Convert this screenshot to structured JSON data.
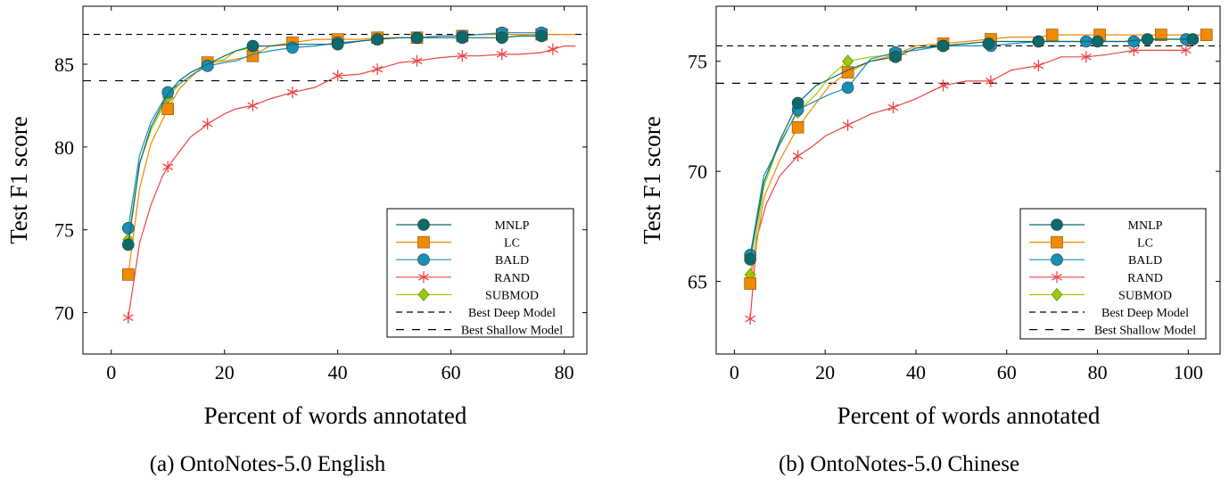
{
  "chart_data": [
    {
      "type": "line",
      "caption": "(a) OntoNotes-5.0 English",
      "xlabel": "Percent of words annotated",
      "ylabel": "Test F1 score",
      "xlim": [
        -5,
        84
      ],
      "ylim": [
        67.5,
        88.5
      ],
      "xticks": [
        0,
        20,
        40,
        60,
        80
      ],
      "yticks": [
        70,
        75,
        80,
        85
      ],
      "legend_position": "bottom-right",
      "series": [
        {
          "name": "MNLP",
          "color": "#0b6b6b",
          "marker": "circle",
          "x": [
            3,
            5,
            7,
            10,
            12,
            14,
            17,
            20,
            22,
            25,
            28,
            32,
            36,
            40,
            44,
            47,
            51,
            54,
            58,
            62,
            65,
            69,
            72,
            76
          ],
          "y": [
            74.1,
            79,
            81.2,
            83.2,
            84,
            84.5,
            85,
            85.5,
            85.8,
            86.1,
            86.1,
            86.2,
            86.2,
            86.2,
            86.4,
            86.5,
            86.6,
            86.6,
            86.6,
            86.6,
            86.6,
            86.6,
            86.7,
            86.7
          ],
          "markers": [
            [
              3,
              74.1
            ],
            [
              25,
              86.1
            ],
            [
              40,
              86.2
            ],
            [
              47,
              86.5
            ],
            [
              54,
              86.6
            ],
            [
              62,
              86.6
            ],
            [
              69,
              86.6
            ],
            [
              76,
              86.7
            ]
          ]
        },
        {
          "name": "LC",
          "color": "#f08a00",
          "marker": "square",
          "x": [
            3,
            5,
            7,
            10,
            12,
            14,
            17,
            20,
            22,
            25,
            28,
            32,
            36,
            40,
            44,
            47,
            51,
            54,
            58,
            62,
            65,
            69,
            72,
            76,
            80,
            82
          ],
          "y": [
            72.3,
            77.5,
            80.2,
            82.3,
            83.5,
            84.2,
            85.1,
            85.2,
            85.3,
            85.5,
            86.1,
            86.3,
            86.5,
            86.5,
            86.5,
            86.6,
            86.6,
            86.6,
            86.7,
            86.7,
            86.8,
            86.8,
            86.8,
            86.8,
            86.8,
            86.8
          ],
          "markers": [
            [
              3,
              72.3
            ],
            [
              10,
              82.3
            ],
            [
              17,
              85.1
            ],
            [
              25,
              85.5
            ],
            [
              32,
              86.3
            ],
            [
              40,
              86.5
            ],
            [
              47,
              86.6
            ],
            [
              54,
              86.6
            ],
            [
              62,
              86.7
            ],
            [
              69,
              86.8
            ],
            [
              76,
              86.8
            ]
          ]
        },
        {
          "name": "BALD",
          "color": "#1a8fb5",
          "marker": "circle",
          "x": [
            3,
            5,
            7,
            10,
            12,
            14,
            17,
            20,
            22,
            25,
            28,
            32,
            36,
            40,
            44,
            47,
            51,
            54,
            58,
            62,
            65,
            69,
            72,
            76
          ],
          "y": [
            75.1,
            79.5,
            81.5,
            83.3,
            83.8,
            84.3,
            84.9,
            85.1,
            85.2,
            85.6,
            85.8,
            86,
            86.1,
            86.3,
            86.4,
            86.5,
            86.6,
            86.6,
            86.7,
            86.7,
            86.8,
            86.9,
            86.9,
            86.9
          ],
          "markers": [
            [
              3,
              75.1
            ],
            [
              10,
              83.3
            ],
            [
              17,
              84.9
            ],
            [
              32,
              86
            ],
            [
              40,
              86.3
            ],
            [
              47,
              86.5
            ],
            [
              54,
              86.6
            ],
            [
              62,
              86.7
            ],
            [
              69,
              86.9
            ],
            [
              76,
              86.9
            ]
          ]
        },
        {
          "name": "RAND",
          "color": "#ee4444",
          "marker": "star",
          "x": [
            3,
            5,
            7,
            9,
            10,
            12,
            14,
            16,
            17,
            20,
            22,
            25,
            28,
            32,
            36,
            40,
            44,
            47,
            51,
            54,
            58,
            62,
            65,
            69,
            72,
            76,
            78,
            80,
            82
          ],
          "y": [
            69.7,
            74.2,
            76.5,
            78.2,
            78.8,
            79.7,
            80.6,
            81.1,
            81.4,
            82,
            82.3,
            82.5,
            82.9,
            83.3,
            83.6,
            84.3,
            84.4,
            84.7,
            85.1,
            85.2,
            85.4,
            85.5,
            85.5,
            85.6,
            85.6,
            85.7,
            85.9,
            86.1,
            86.1
          ],
          "markers": [
            [
              3,
              69.7
            ],
            [
              10,
              78.8
            ],
            [
              17,
              81.4
            ],
            [
              25,
              82.5
            ],
            [
              32,
              83.3
            ],
            [
              40,
              84.3
            ],
            [
              47,
              84.7
            ],
            [
              54,
              85.2
            ],
            [
              62,
              85.5
            ],
            [
              69,
              85.6
            ],
            [
              78,
              85.9
            ]
          ]
        },
        {
          "name": "SUBMOD",
          "color": "#99cc00",
          "marker": "diamond",
          "x": [
            3,
            5,
            7,
            10,
            12,
            14,
            17,
            20,
            22,
            25
          ],
          "y": [
            74.4,
            79,
            81,
            83,
            83.8,
            84.3,
            85,
            85.3,
            85.8,
            86
          ],
          "markers": [
            [
              3,
              74.4
            ],
            [
              10,
              83
            ],
            [
              17,
              85
            ]
          ]
        }
      ],
      "reference_lines": [
        {
          "name": "Best Deep Model",
          "y": 86.8,
          "dash": "dense"
        },
        {
          "name": "Best Shallow Model",
          "y": 84,
          "dash": "loose"
        }
      ]
    },
    {
      "type": "line",
      "caption": "(b) OntoNotes-5.0 Chinese",
      "xlabel": "Percent of words annotated",
      "ylabel": "Test F1 score",
      "xlim": [
        -4,
        107
      ],
      "ylim": [
        61.7,
        77.5
      ],
      "xticks": [
        0,
        20,
        40,
        60,
        80,
        100
      ],
      "yticks": [
        65,
        70,
        75
      ],
      "legend_position": "bottom-right",
      "series": [
        {
          "name": "MNLP",
          "color": "#0b6b6b",
          "marker": "circle",
          "x": [
            3.5,
            6.5,
            10,
            14,
            18,
            21,
            25,
            30,
            35.5,
            40,
            46,
            51,
            56,
            61,
            67,
            72,
            77,
            81,
            86,
            91,
            96,
            101
          ],
          "y": [
            66,
            69.5,
            71.4,
            73.1,
            73.9,
            74.2,
            74.6,
            75,
            75.2,
            75.6,
            75.7,
            75.8,
            75.9,
            75.9,
            75.9,
            75.9,
            75.9,
            75.9,
            75.9,
            76,
            76,
            76
          ],
          "markers": [
            [
              3.5,
              66
            ],
            [
              14,
              73.1
            ],
            [
              35.5,
              75.2
            ],
            [
              46,
              75.7
            ],
            [
              56,
              75.8
            ],
            [
              67,
              75.9
            ],
            [
              80,
              75.9
            ],
            [
              91,
              76
            ],
            [
              101,
              76
            ]
          ]
        },
        {
          "name": "LC",
          "color": "#f08a00",
          "marker": "square",
          "x": [
            3.5,
            6.5,
            10,
            14,
            18,
            21,
            25,
            30,
            35.5,
            40,
            46,
            51,
            56,
            61,
            67,
            70,
            77,
            81,
            86,
            91,
            94,
            99,
            104
          ],
          "y": [
            64.9,
            68.8,
            70.5,
            72,
            73.1,
            73.9,
            74.5,
            75,
            75.3,
            75.7,
            75.8,
            75.9,
            76,
            76.1,
            76.1,
            76.2,
            76.2,
            76.2,
            76.2,
            76.2,
            76.2,
            76.2,
            76.2
          ],
          "markers": [
            [
              3.5,
              64.9
            ],
            [
              14,
              72
            ],
            [
              25,
              74.5
            ],
            [
              35.5,
              75.3
            ],
            [
              46,
              75.8
            ],
            [
              56.5,
              76
            ],
            [
              70,
              76.2
            ],
            [
              80.5,
              76.2
            ],
            [
              94,
              76.2
            ],
            [
              104,
              76.2
            ]
          ]
        },
        {
          "name": "BALD",
          "color": "#1a8fb5",
          "marker": "circle",
          "x": [
            3.5,
            6.5,
            10,
            14,
            18,
            21,
            25,
            30,
            35.5,
            40,
            46,
            51,
            56.5,
            61,
            67,
            72,
            77.5,
            81,
            88,
            94,
            99.5
          ],
          "y": [
            66.2,
            69.8,
            71.2,
            72.8,
            73.2,
            73.5,
            73.8,
            75.1,
            75.4,
            75.5,
            75.7,
            75.7,
            75.7,
            75.8,
            75.9,
            75.9,
            75.9,
            75.9,
            75.9,
            76,
            76
          ],
          "markers": [
            [
              3.5,
              66.2
            ],
            [
              14,
              72.8
            ],
            [
              25,
              73.8
            ],
            [
              35.5,
              75.4
            ],
            [
              46,
              75.7
            ],
            [
              56.5,
              75.7
            ],
            [
              67,
              75.9
            ],
            [
              77.5,
              75.9
            ],
            [
              88,
              75.9
            ],
            [
              99.5,
              76
            ]
          ]
        },
        {
          "name": "RAND",
          "color": "#ee4444",
          "marker": "star",
          "x": [
            3.5,
            5,
            7,
            10,
            14,
            17,
            20,
            25,
            30,
            35,
            40,
            46,
            51,
            56.5,
            61,
            67,
            72,
            77.5,
            82,
            88,
            94,
            99.5
          ],
          "y": [
            63.3,
            67,
            68.5,
            69.8,
            70.7,
            71.1,
            71.6,
            72.1,
            72.6,
            72.9,
            73.3,
            73.9,
            74.1,
            74.1,
            74.6,
            74.8,
            75.2,
            75.2,
            75.3,
            75.5,
            75.5,
            75.5
          ],
          "markers": [
            [
              3.5,
              63.3
            ],
            [
              14,
              70.7
            ],
            [
              25,
              72.1
            ],
            [
              35,
              72.9
            ],
            [
              46,
              73.9
            ],
            [
              56.5,
              74.1
            ],
            [
              67,
              74.8
            ],
            [
              77.5,
              75.2
            ],
            [
              88,
              75.5
            ],
            [
              99.5,
              75.5
            ]
          ]
        },
        {
          "name": "SUBMOD",
          "color": "#99cc00",
          "marker": "diamond",
          "x": [
            3.5,
            6.5,
            10,
            14,
            18,
            21,
            25,
            30,
            35.5,
            38
          ],
          "y": [
            65.3,
            69.3,
            71.3,
            72.7,
            73.5,
            74.3,
            75,
            75.2,
            75.3,
            75.3
          ],
          "markers": [
            [
              3.5,
              65.3
            ],
            [
              14,
              72.7
            ],
            [
              25,
              75
            ],
            [
              35.5,
              75.3
            ]
          ]
        }
      ],
      "reference_lines": [
        {
          "name": "Best Deep Model",
          "y": 75.7,
          "dash": "dense"
        },
        {
          "name": "Best Shallow Model",
          "y": 74,
          "dash": "loose"
        }
      ]
    }
  ]
}
